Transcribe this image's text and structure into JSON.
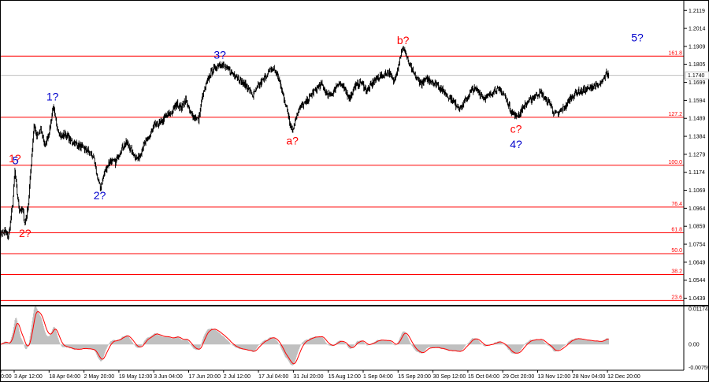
{
  "chart_data": [
    {
      "type": "line",
      "main_panel": true,
      "price_ticks": [
        "1.2119",
        "1.2014",
        "1.1909",
        "1.1805",
        "1.1699",
        "1.1594",
        "1.1489",
        "1.1384",
        "1.1279",
        "1.1174",
        "1.1069",
        "1.0964",
        "1.0859",
        "1.0754",
        "1.0649",
        "1.0544",
        "1.0439"
      ],
      "ylim": [
        1.04,
        1.218
      ],
      "current_price": "1.1740",
      "current_price_value": 1.174,
      "time_labels": [
        "0:00",
        "3 Apr 12:00",
        "18 Apr 04:00",
        "2 May 20:00",
        "19 May 12:00",
        "3 Jun 04:00",
        "17 Jun 20:00",
        "2 Jul 12:00",
        "17 Jul 04:00",
        "31 Jul 20:00",
        "15 Aug 12:00",
        "1 Sep 04:00",
        "15 Sep 20:00",
        "30 Sep 12:00",
        "15 Oct 04:00",
        "29 Oct 20:00",
        "13 Nov 12:00",
        "28 Nov 04:00",
        "12 Dec 20:00"
      ],
      "fib_levels": [
        {
          "label": "161.8",
          "value": 1.1852
        },
        {
          "label": "127.2",
          "value": 1.1495
        },
        {
          "label": "100.0",
          "value": 1.1215
        },
        {
          "label": "76.4",
          "value": 1.0971
        },
        {
          "label": "61.8",
          "value": 1.0821
        },
        {
          "label": "50.0",
          "value": 1.0699
        },
        {
          "label": "38.2",
          "value": 1.0577
        },
        {
          "label": "23.6",
          "value": 1.0426
        }
      ],
      "wave_labels": [
        {
          "text": "1?",
          "color": "#ff0000",
          "bar": 26,
          "price": 1.1215,
          "pos": "above"
        },
        {
          "text": "5",
          "color": "#0000cc",
          "bar": 27,
          "price": 1.1202,
          "pos": "above"
        },
        {
          "text": "2?",
          "color": "#ff0000",
          "bar": 44,
          "price": 1.086,
          "pos": "below"
        },
        {
          "text": "1?",
          "color": "#0000cc",
          "bar": 93,
          "price": 1.1575,
          "pos": "above"
        },
        {
          "text": "2?",
          "color": "#0000cc",
          "bar": 177,
          "price": 1.108,
          "pos": "below"
        },
        {
          "text": "3?",
          "color": "#0000cc",
          "bar": 391,
          "price": 1.182,
          "pos": "above"
        },
        {
          "text": "a?",
          "color": "#ff0000",
          "bar": 520,
          "price": 1.14,
          "pos": "below"
        },
        {
          "text": "b?",
          "color": "#ff0000",
          "bar": 717,
          "price": 1.1905,
          "pos": "above"
        },
        {
          "text": "c?",
          "color": "#ff0000",
          "bar": 918,
          "price": 1.147,
          "pos": "below"
        },
        {
          "text": "4?",
          "color": "#0000cc",
          "bar": 918,
          "price": 1.138,
          "pos": "below"
        },
        {
          "text": "5?",
          "color": "#0000cc",
          "bar": 1134,
          "price": 1.192,
          "pos": "above"
        }
      ],
      "anchors": [
        [
          0,
          1.081
        ],
        [
          8,
          1.083
        ],
        [
          14,
          1.079
        ],
        [
          18,
          1.088
        ],
        [
          22,
          1.099
        ],
        [
          26,
          1.118
        ],
        [
          30,
          1.105
        ],
        [
          34,
          1.096
        ],
        [
          40,
          1.095
        ],
        [
          44,
          1.087
        ],
        [
          50,
          1.099
        ],
        [
          55,
          1.123
        ],
        [
          60,
          1.145
        ],
        [
          65,
          1.138
        ],
        [
          72,
          1.142
        ],
        [
          80,
          1.133
        ],
        [
          88,
          1.142
        ],
        [
          94,
          1.156
        ],
        [
          100,
          1.145
        ],
        [
          108,
          1.138
        ],
        [
          115,
          1.14
        ],
        [
          125,
          1.136
        ],
        [
          135,
          1.134
        ],
        [
          145,
          1.132
        ],
        [
          155,
          1.13
        ],
        [
          165,
          1.127
        ],
        [
          172,
          1.116
        ],
        [
          178,
          1.108
        ],
        [
          186,
          1.118
        ],
        [
          195,
          1.124
        ],
        [
          205,
          1.123
        ],
        [
          215,
          1.131
        ],
        [
          225,
          1.135
        ],
        [
          235,
          1.129
        ],
        [
          245,
          1.125
        ],
        [
          255,
          1.133
        ],
        [
          265,
          1.138
        ],
        [
          275,
          1.145
        ],
        [
          285,
          1.146
        ],
        [
          295,
          1.15
        ],
        [
          305,
          1.152
        ],
        [
          315,
          1.158
        ],
        [
          322,
          1.155
        ],
        [
          330,
          1.16
        ],
        [
          338,
          1.152
        ],
        [
          345,
          1.15
        ],
        [
          353,
          1.148
        ],
        [
          360,
          1.162
        ],
        [
          368,
          1.17
        ],
        [
          376,
          1.176
        ],
        [
          384,
          1.179
        ],
        [
          392,
          1.181
        ],
        [
          400,
          1.179
        ],
        [
          410,
          1.176
        ],
        [
          420,
          1.174
        ],
        [
          430,
          1.17
        ],
        [
          440,
          1.167
        ],
        [
          450,
          1.162
        ],
        [
          460,
          1.168
        ],
        [
          470,
          1.172
        ],
        [
          478,
          1.176
        ],
        [
          486,
          1.178
        ],
        [
          494,
          1.174
        ],
        [
          502,
          1.164
        ],
        [
          510,
          1.155
        ],
        [
          516,
          1.146
        ],
        [
          521,
          1.142
        ],
        [
          528,
          1.152
        ],
        [
          536,
          1.156
        ],
        [
          544,
          1.158
        ],
        [
          552,
          1.162
        ],
        [
          562,
          1.166
        ],
        [
          572,
          1.169
        ],
        [
          582,
          1.162
        ],
        [
          592,
          1.164
        ],
        [
          602,
          1.17
        ],
        [
          612,
          1.166
        ],
        [
          622,
          1.161
        ],
        [
          632,
          1.168
        ],
        [
          642,
          1.17
        ],
        [
          652,
          1.165
        ],
        [
          662,
          1.169
        ],
        [
          672,
          1.173
        ],
        [
          682,
          1.174
        ],
        [
          692,
          1.176
        ],
        [
          700,
          1.17
        ],
        [
          708,
          1.179
        ],
        [
          714,
          1.188
        ],
        [
          719,
          1.19
        ],
        [
          726,
          1.182
        ],
        [
          734,
          1.176
        ],
        [
          742,
          1.172
        ],
        [
          750,
          1.169
        ],
        [
          760,
          1.172
        ],
        [
          770,
          1.17
        ],
        [
          780,
          1.168
        ],
        [
          790,
          1.164
        ],
        [
          800,
          1.161
        ],
        [
          810,
          1.157
        ],
        [
          820,
          1.155
        ],
        [
          830,
          1.16
        ],
        [
          840,
          1.166
        ],
        [
          850,
          1.165
        ],
        [
          860,
          1.161
        ],
        [
          870,
          1.162
        ],
        [
          880,
          1.166
        ],
        [
          890,
          1.165
        ],
        [
          898,
          1.162
        ],
        [
          906,
          1.156
        ],
        [
          912,
          1.152
        ],
        [
          918,
          1.15
        ],
        [
          925,
          1.152
        ],
        [
          932,
          1.156
        ],
        [
          942,
          1.159
        ],
        [
          952,
          1.162
        ],
        [
          962,
          1.164
        ],
        [
          970,
          1.16
        ],
        [
          978,
          1.158
        ],
        [
          985,
          1.152
        ],
        [
          990,
          1.151
        ],
        [
          998,
          1.153
        ],
        [
          1006,
          1.156
        ],
        [
          1016,
          1.161
        ],
        [
          1026,
          1.164
        ],
        [
          1036,
          1.165
        ],
        [
          1046,
          1.166
        ],
        [
          1056,
          1.168
        ],
        [
          1066,
          1.168
        ],
        [
          1072,
          1.17
        ],
        [
          1078,
          1.175
        ],
        [
          1083,
          1.174
        ]
      ]
    },
    {
      "type": "area",
      "oscillator": true,
      "ticks": [
        "0.01174",
        "0.00",
        "-0.00759"
      ],
      "tick_values": [
        0.01174,
        0.0,
        -0.00759
      ],
      "ylim": [
        -0.0085,
        0.0125
      ],
      "fill_color": "#c0c0c0",
      "signal_color": "#ff0000"
    }
  ]
}
